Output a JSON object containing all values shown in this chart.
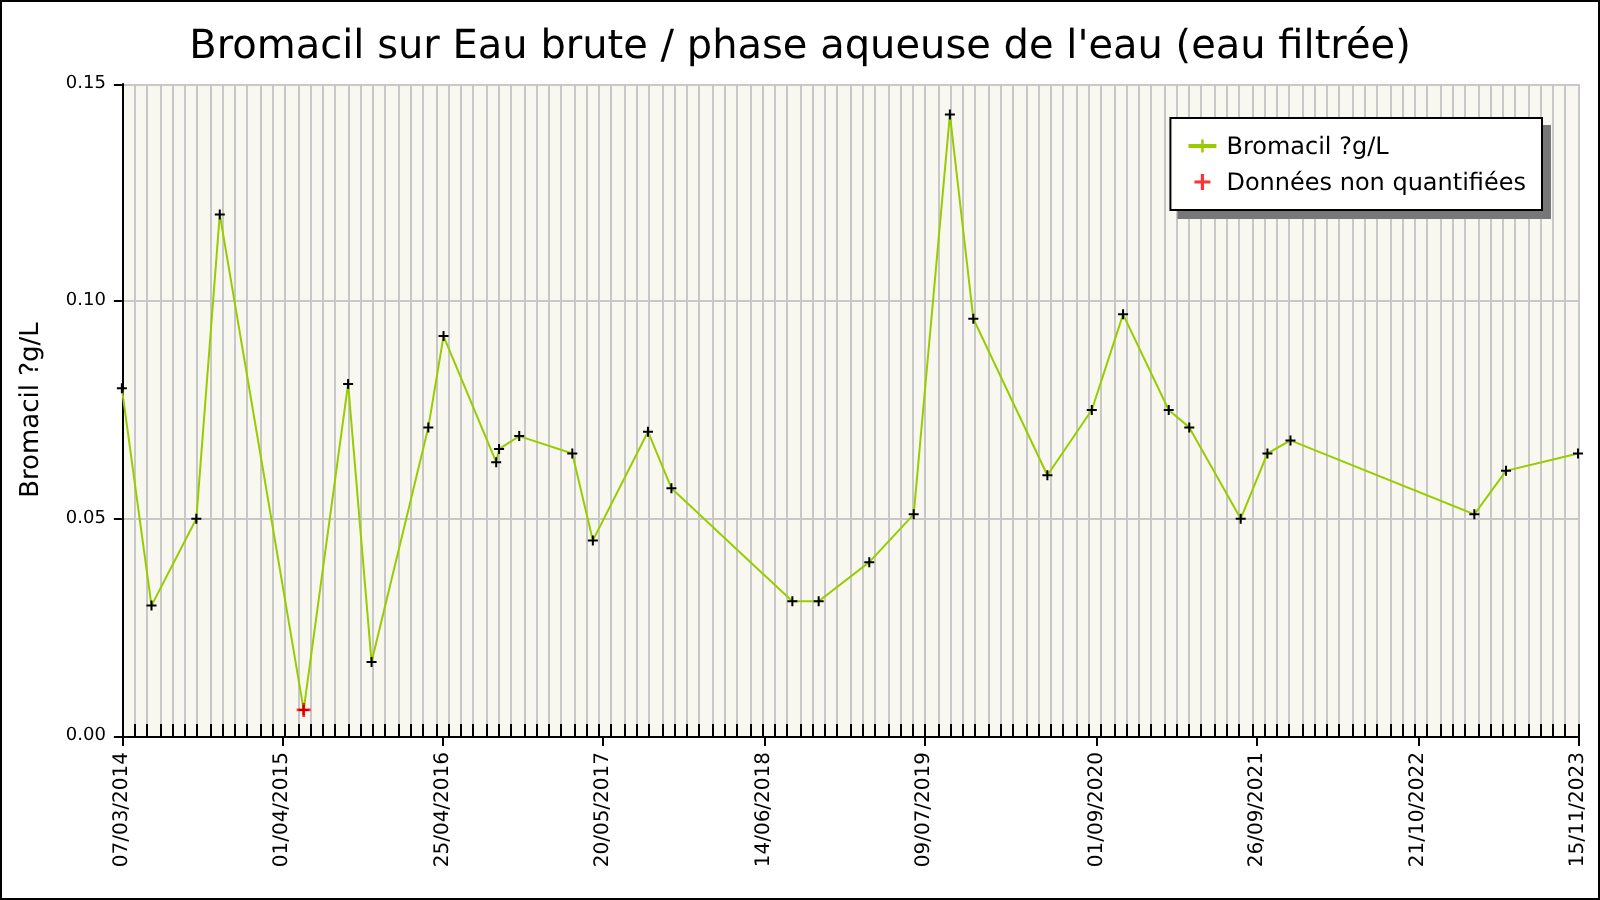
{
  "chart_data": {
    "type": "line",
    "title": "Bromacil sur Eau brute / phase aqueuse de l'eau (eau filtrée)",
    "ylabel": "Bromacil ?g/L",
    "x": [
      "2014-03-07",
      "2014-05-18",
      "2014-09-04",
      "2014-10-31",
      "2015-05-23",
      "2015-09-08",
      "2015-11-04",
      "2016-03-21",
      "2016-04-27",
      "2016-09-02",
      "2016-09-09",
      "2016-10-28",
      "2017-03-06",
      "2017-04-25",
      "2017-09-06",
      "2017-11-02",
      "2018-08-23",
      "2018-10-26",
      "2019-02-26",
      "2019-06-14",
      "2019-09-10",
      "2019-11-06",
      "2020-05-04",
      "2020-08-20",
      "2020-11-04",
      "2021-02-23",
      "2021-04-14",
      "2021-08-17",
      "2021-10-21",
      "2021-12-16",
      "2023-03-08",
      "2023-05-24",
      "2023-11-15"
    ],
    "series": [
      {
        "name": "Bromacil ?g/L",
        "color": "#99cc00",
        "values": [
          0.08,
          0.03,
          0.05,
          0.12,
          0.006,
          0.081,
          0.017,
          0.071,
          0.092,
          0.063,
          0.066,
          0.069,
          0.065,
          0.045,
          0.07,
          0.057,
          0.031,
          0.031,
          0.04,
          0.051,
          0.143,
          0.096,
          0.06,
          0.075,
          0.097,
          0.075,
          0.071,
          0.05,
          0.065,
          0.068,
          0.051,
          0.061,
          0.065
        ]
      },
      {
        "name": "Données non quantifiées",
        "type": "scatter",
        "color": "#ff0000",
        "x": [
          "2015-05-23"
        ],
        "values": [
          0.006
        ]
      }
    ],
    "xlim": [
      "2014-03-07",
      "2023-11-15"
    ],
    "xticks": [
      {
        "value": "2014-03-07",
        "label": "07/03/2014"
      },
      {
        "value": "2015-04-01",
        "label": "01/04/2015"
      },
      {
        "value": "2016-04-25",
        "label": "25/04/2016"
      },
      {
        "value": "2017-05-20",
        "label": "20/05/2017"
      },
      {
        "value": "2018-06-14",
        "label": "14/06/2018"
      },
      {
        "value": "2019-07-09",
        "label": "09/07/2019"
      },
      {
        "value": "2020-09-01",
        "label": "01/09/2020"
      },
      {
        "value": "2021-09-26",
        "label": "26/09/2021"
      },
      {
        "value": "2022-10-21",
        "label": "21/10/2022"
      },
      {
        "value": "2023-11-15",
        "label": "15/11/2023"
      }
    ],
    "ylim": [
      0,
      0.15
    ],
    "yticks": [
      {
        "value": 0,
        "label": "0.00"
      },
      {
        "value": 0.05,
        "label": "0.05"
      },
      {
        "value": 0.1,
        "label": "0.10"
      },
      {
        "value": 0.15,
        "label": "0.15"
      }
    ],
    "grid": true,
    "legend": "top right",
    "marker": "cross",
    "line_style": "solid"
  }
}
